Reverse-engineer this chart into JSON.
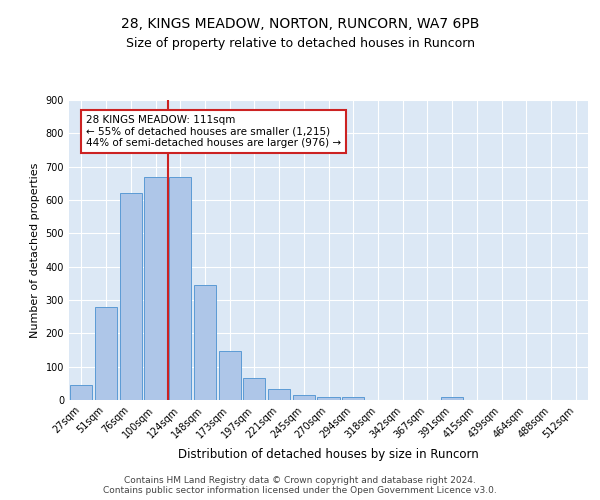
{
  "title1": "28, KINGS MEADOW, NORTON, RUNCORN, WA7 6PB",
  "title2": "Size of property relative to detached houses in Runcorn",
  "xlabel": "Distribution of detached houses by size in Runcorn",
  "ylabel": "Number of detached properties",
  "bin_labels": [
    "27sqm",
    "51sqm",
    "76sqm",
    "100sqm",
    "124sqm",
    "148sqm",
    "173sqm",
    "197sqm",
    "221sqm",
    "245sqm",
    "270sqm",
    "294sqm",
    "318sqm",
    "342sqm",
    "367sqm",
    "391sqm",
    "415sqm",
    "439sqm",
    "464sqm",
    "488sqm",
    "512sqm"
  ],
  "bar_values": [
    45,
    280,
    620,
    670,
    670,
    345,
    148,
    65,
    33,
    15,
    10,
    10,
    0,
    0,
    0,
    10,
    0,
    0,
    0,
    0,
    0
  ],
  "bar_color": "#aec6e8",
  "bar_edge_color": "#5b9bd5",
  "vline_x": 3.5,
  "vline_color": "#cc2222",
  "annotation_text": "28 KINGS MEADOW: 111sqm\n← 55% of detached houses are smaller (1,215)\n44% of semi-detached houses are larger (976) →",
  "annotation_box_color": "#ffffff",
  "annotation_box_edge": "#cc2222",
  "plot_bg_color": "#dce8f5",
  "ylim": [
    0,
    900
  ],
  "yticks": [
    0,
    100,
    200,
    300,
    400,
    500,
    600,
    700,
    800,
    900
  ],
  "footer_text": "Contains HM Land Registry data © Crown copyright and database right 2024.\nContains public sector information licensed under the Open Government Licence v3.0.",
  "title1_fontsize": 10,
  "title2_fontsize": 9,
  "xlabel_fontsize": 8.5,
  "ylabel_fontsize": 8,
  "tick_fontsize": 7,
  "annotation_fontsize": 7.5,
  "footer_fontsize": 6.5
}
